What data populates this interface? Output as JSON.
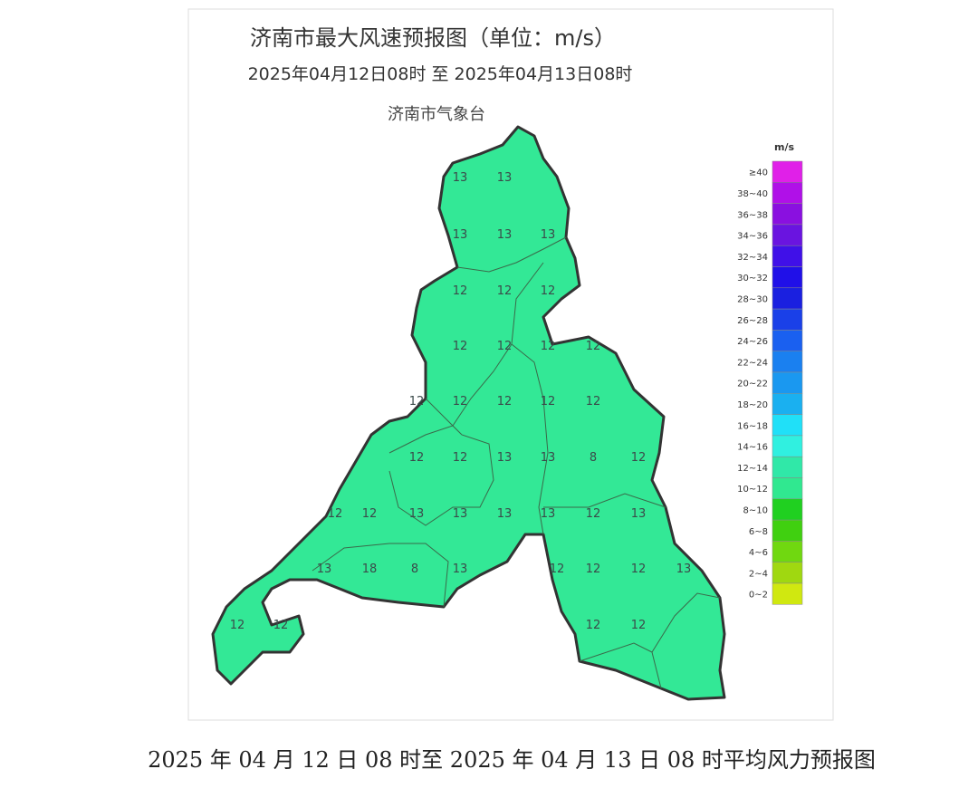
{
  "header": {
    "title": "济南市最大风速预报图（单位：m/s）",
    "period": "2025年04月12日08时  至  2025年04月13日08时",
    "issuer": "济南市气象台"
  },
  "map": {
    "fill_color": "#33e896",
    "labels": [
      "13",
      "13",
      "13",
      "13",
      "13",
      "12",
      "12",
      "12",
      "12",
      "12",
      "12",
      "12",
      "12",
      "12",
      "12",
      "12",
      "12",
      "12",
      "12",
      "13",
      "13",
      "8",
      "12",
      "12",
      "12",
      "13",
      "13",
      "13",
      "13",
      "12",
      "13",
      "13",
      "18",
      "8",
      "13",
      "12",
      "12",
      "12",
      "13",
      "12",
      "12",
      "12",
      "12"
    ]
  },
  "legend": {
    "title": "m/s",
    "items": [
      {
        "label": "≥40",
        "color": "#e020e8"
      },
      {
        "label": "38~40",
        "color": "#b010e8"
      },
      {
        "label": "36~38",
        "color": "#8a10e0"
      },
      {
        "label": "34~36",
        "color": "#6a14e0"
      },
      {
        "label": "32~34",
        "color": "#4010e8"
      },
      {
        "label": "30~32",
        "color": "#2010e8"
      },
      {
        "label": "28~30",
        "color": "#1a20e0"
      },
      {
        "label": "26~28",
        "color": "#1a40e8"
      },
      {
        "label": "24~26",
        "color": "#1a60f0"
      },
      {
        "label": "22~24",
        "color": "#1a80f0"
      },
      {
        "label": "20~22",
        "color": "#1a98f0"
      },
      {
        "label": "18~20",
        "color": "#1ab0f0"
      },
      {
        "label": "16~18",
        "color": "#20e0f8"
      },
      {
        "label": "14~16",
        "color": "#30f0e0"
      },
      {
        "label": "12~14",
        "color": "#30e8a8"
      },
      {
        "label": "10~12",
        "color": "#30e890"
      },
      {
        "label": "8~10",
        "color": "#20d020"
      },
      {
        "label": "6~8",
        "color": "#40d010"
      },
      {
        "label": "4~6",
        "color": "#70d810"
      },
      {
        "label": "2~4",
        "color": "#a0d810"
      },
      {
        "label": "0~2",
        "color": "#d0e810"
      }
    ]
  },
  "caption": "2025 年 04 月 12 日 08 时至 2025 年 04 月 13 日 08 时平均风力预报图"
}
